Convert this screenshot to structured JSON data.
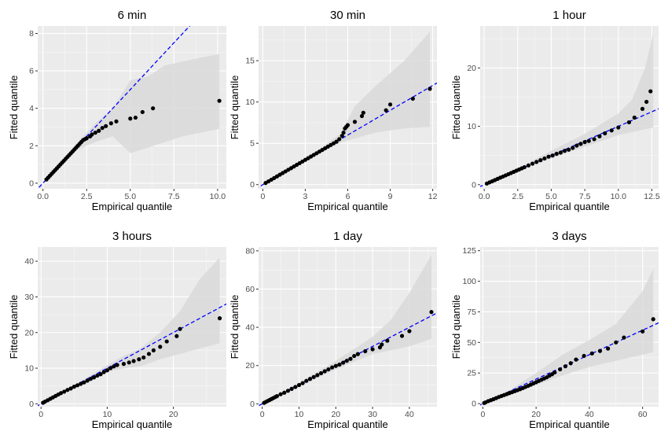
{
  "figure": {
    "panel_bg": "#ebebeb",
    "grid_major": "#ffffff",
    "band_fill": "#d9d9d9",
    "point_color": "#000000",
    "ref_line_color": "#0000ff"
  },
  "chart_data": [
    {
      "type": "scatter",
      "title": "6 min",
      "xlabel": "Empirical quantile",
      "ylabel": "Fitted quantile",
      "xlim": [
        -0.3,
        10.5
      ],
      "ylim": [
        -0.3,
        8.4
      ],
      "xticks": [
        0,
        2.5,
        5,
        7.5,
        10
      ],
      "xtick_labels": [
        "0.0",
        "2.5",
        "5.0",
        "7.5",
        "10.0"
      ],
      "yticks": [
        0,
        2,
        4,
        6,
        8
      ],
      "ytick_labels": [
        "0",
        "2",
        "4",
        "6",
        "8"
      ],
      "reference_line": "y = x",
      "points": {
        "x": [
          0.2,
          0.3,
          0.4,
          0.5,
          0.6,
          0.7,
          0.8,
          0.9,
          1.0,
          1.1,
          1.2,
          1.3,
          1.4,
          1.5,
          1.6,
          1.7,
          1.8,
          1.9,
          2.0,
          2.1,
          2.2,
          2.3,
          2.4,
          2.5,
          2.7,
          2.8,
          3.0,
          3.2,
          3.4,
          3.6,
          3.9,
          4.2,
          5.0,
          5.3,
          5.7,
          6.3,
          10.1
        ],
        "y": [
          0.2,
          0.3,
          0.4,
          0.5,
          0.6,
          0.7,
          0.8,
          0.9,
          1.0,
          1.1,
          1.2,
          1.3,
          1.4,
          1.5,
          1.6,
          1.7,
          1.8,
          1.9,
          2.0,
          2.1,
          2.2,
          2.3,
          2.35,
          2.4,
          2.5,
          2.6,
          2.7,
          2.8,
          2.95,
          3.05,
          3.2,
          3.3,
          3.45,
          3.5,
          3.8,
          4.0,
          4.4
        ]
      },
      "band": {
        "x": [
          0,
          1,
          2,
          3,
          4,
          5,
          6,
          7,
          8,
          9,
          10.1
        ],
        "lower": [
          0,
          0.9,
          1.8,
          2.2,
          2.5,
          1.6,
          1.9,
          2.2,
          2.5,
          2.7,
          2.9
        ],
        "upper": [
          0,
          1.1,
          2.2,
          3.2,
          4.0,
          5.5,
          5.7,
          6.3,
          6.5,
          6.7,
          6.9
        ]
      }
    },
    {
      "type": "scatter",
      "title": "30 min",
      "xlabel": "Empirical quantile",
      "ylabel": "Fitted quantile",
      "xlim": [
        -0.3,
        12.3
      ],
      "ylim": [
        -0.5,
        19.2
      ],
      "xticks": [
        0,
        3,
        6,
        9,
        12
      ],
      "xtick_labels": [
        "0",
        "3",
        "6",
        "9",
        "12"
      ],
      "yticks": [
        0,
        5,
        10,
        15
      ],
      "ytick_labels": [
        "0",
        "5",
        "10",
        "15"
      ],
      "reference_line": "y = x",
      "points": {
        "x": [
          0.2,
          0.4,
          0.6,
          0.8,
          1.0,
          1.2,
          1.4,
          1.6,
          1.8,
          2.0,
          2.2,
          2.4,
          2.6,
          2.8,
          3.0,
          3.2,
          3.4,
          3.6,
          3.8,
          4.0,
          4.2,
          4.4,
          4.6,
          4.8,
          5.0,
          5.2,
          5.4,
          5.6,
          5.7,
          5.8,
          5.9,
          6.0,
          6.5,
          7.0,
          7.1,
          8.7,
          9.0,
          10.6,
          11.8
        ],
        "y": [
          0.2,
          0.4,
          0.6,
          0.8,
          1.0,
          1.2,
          1.4,
          1.6,
          1.8,
          2.0,
          2.2,
          2.4,
          2.6,
          2.8,
          3.0,
          3.2,
          3.4,
          3.6,
          3.8,
          4.0,
          4.2,
          4.4,
          4.6,
          4.8,
          5.0,
          5.2,
          5.5,
          5.9,
          6.3,
          6.8,
          7.0,
          7.2,
          7.6,
          8.3,
          8.7,
          9.0,
          9.7,
          10.4,
          11.6
        ]
      },
      "band": {
        "x": [
          0,
          2,
          4,
          5.5,
          6.5,
          8,
          10,
          11.8
        ],
        "lower": [
          0,
          1.9,
          3.8,
          5.1,
          5.6,
          6.3,
          6.8,
          7.0
        ],
        "upper": [
          0,
          2.1,
          4.3,
          6.2,
          9.5,
          12.0,
          15.0,
          18.5
        ]
      }
    },
    {
      "type": "scatter",
      "title": "1 hour",
      "xlabel": "Empirical quantile",
      "ylabel": "Fitted quantile",
      "xlim": [
        -0.3,
        13.0
      ],
      "ylim": [
        -0.7,
        27.2
      ],
      "xticks": [
        0,
        2.5,
        5,
        7.5,
        10,
        12.5
      ],
      "xtick_labels": [
        "0.0",
        "2.5",
        "5.0",
        "7.5",
        "10.0",
        "12.5"
      ],
      "yticks": [
        0,
        10,
        20
      ],
      "ytick_labels": [
        "0",
        "10",
        "20"
      ],
      "reference_line": "y = x",
      "points": {
        "x": [
          0.2,
          0.4,
          0.6,
          0.8,
          1.0,
          1.2,
          1.4,
          1.6,
          1.8,
          2.0,
          2.2,
          2.4,
          2.6,
          2.8,
          3.0,
          3.3,
          3.6,
          3.9,
          4.2,
          4.5,
          4.8,
          5.1,
          5.4,
          5.7,
          6.0,
          6.3,
          6.6,
          6.9,
          7.2,
          7.5,
          7.8,
          8.2,
          8.6,
          9.0,
          9.5,
          10.0,
          10.8,
          11.2,
          11.8,
          12.1,
          12.4
        ],
        "y": [
          0.2,
          0.4,
          0.6,
          0.8,
          1.0,
          1.2,
          1.4,
          1.6,
          1.8,
          2.0,
          2.2,
          2.4,
          2.6,
          2.8,
          3.0,
          3.3,
          3.6,
          3.9,
          4.2,
          4.5,
          4.8,
          5.0,
          5.3,
          5.5,
          5.8,
          6.0,
          6.3,
          6.7,
          7.0,
          7.3,
          7.5,
          7.8,
          8.3,
          8.8,
          9.3,
          9.8,
          10.7,
          11.5,
          13.0,
          14.2,
          16.0
        ]
      },
      "band": {
        "x": [
          0,
          2.5,
          5,
          7.5,
          10,
          11,
          12,
          12.6
        ],
        "lower": [
          0,
          2.3,
          4.5,
          6.5,
          8.5,
          9.0,
          9.5,
          9.8
        ],
        "upper": [
          0,
          2.8,
          5.8,
          8.7,
          12.2,
          14.5,
          20.0,
          26.0
        ]
      }
    },
    {
      "type": "scatter",
      "title": "3 hours",
      "xlabel": "Empirical quantile",
      "ylabel": "Fitted quantile",
      "xlim": [
        -0.5,
        28.0
      ],
      "ylim": [
        -0.8,
        44.0
      ],
      "xticks": [
        0,
        10,
        20
      ],
      "xtick_labels": [
        "0",
        "10",
        "20"
      ],
      "yticks": [
        0,
        10,
        20,
        30,
        40
      ],
      "ytick_labels": [
        "0",
        "10",
        "20",
        "30",
        "40"
      ],
      "reference_line": "y = x",
      "points": {
        "x": [
          0.3,
          0.6,
          1.0,
          1.4,
          1.8,
          2.2,
          2.6,
          3.0,
          3.5,
          4.0,
          4.5,
          5.0,
          5.5,
          6.0,
          6.5,
          7.0,
          7.5,
          8.0,
          8.5,
          9.0,
          9.5,
          10.0,
          10.5,
          11.0,
          11.5,
          12.5,
          13.3,
          14.0,
          14.8,
          15.5,
          16.3,
          17.0,
          18.0,
          19.0,
          20.5,
          21.0,
          27.0
        ],
        "y": [
          0.3,
          0.6,
          1.0,
          1.4,
          1.8,
          2.2,
          2.6,
          3.0,
          3.4,
          3.9,
          4.3,
          4.8,
          5.2,
          5.6,
          6.0,
          6.5,
          7.0,
          7.4,
          7.9,
          8.3,
          8.9,
          9.4,
          10.0,
          10.5,
          10.9,
          11.2,
          11.6,
          12.0,
          12.5,
          13.0,
          14.0,
          15.0,
          16.0,
          17.5,
          19.0,
          21.0,
          24.0
        ]
      },
      "band": {
        "x": [
          0,
          5,
          10,
          12,
          15,
          18,
          21,
          24,
          27
        ],
        "lower": [
          0,
          4.6,
          9.0,
          9.8,
          10.5,
          12.5,
          14.0,
          15.5,
          17.0
        ],
        "upper": [
          0,
          5.3,
          10.8,
          13.0,
          15.5,
          20.0,
          26.0,
          35.0,
          41.0
        ]
      }
    },
    {
      "type": "scatter",
      "title": "1 day",
      "xlabel": "Empirical quantile",
      "ylabel": "Fitted quantile",
      "xlim": [
        -1.0,
        47.5
      ],
      "ylim": [
        -1.5,
        82.0
      ],
      "xticks": [
        0,
        10,
        20,
        30,
        40
      ],
      "xtick_labels": [
        "0",
        "10",
        "20",
        "30",
        "40"
      ],
      "yticks": [
        0,
        20,
        40,
        60,
        80
      ],
      "ytick_labels": [
        "0",
        "20",
        "40",
        "60",
        "80"
      ],
      "reference_line": "y = x",
      "points": {
        "x": [
          0.5,
          1.0,
          1.5,
          2.0,
          2.5,
          3.0,
          3.5,
          4.0,
          5.0,
          6.0,
          7.0,
          8.0,
          9.0,
          10.0,
          11.0,
          12.0,
          13.0,
          14.0,
          15.0,
          16.0,
          17.0,
          18.0,
          19.0,
          20.0,
          21.0,
          22.0,
          23.0,
          24.0,
          25.0,
          26.0,
          28.0,
          30.0,
          32.0,
          32.5,
          34.0,
          38.0,
          40.0,
          46.0
        ],
        "y": [
          0.5,
          1.0,
          1.5,
          2.0,
          2.5,
          3.0,
          3.5,
          4.0,
          5.0,
          5.8,
          6.8,
          7.8,
          8.8,
          9.8,
          10.8,
          12.0,
          13.0,
          14.0,
          15.0,
          16.0,
          17.0,
          18.0,
          19.0,
          19.8,
          20.5,
          21.5,
          22.5,
          23.5,
          25.0,
          26.0,
          27.5,
          28.5,
          29.5,
          31.0,
          33.0,
          35.5,
          38.0,
          48.0
        ]
      },
      "band": {
        "x": [
          0,
          10,
          20,
          30,
          35,
          40,
          46
        ],
        "lower": [
          0,
          9.0,
          18.0,
          26.0,
          28.0,
          30.0,
          34.0
        ],
        "upper": [
          0,
          11.0,
          22.5,
          35.0,
          44.0,
          58.0,
          78.0
        ]
      }
    },
    {
      "type": "scatter",
      "title": "3 days",
      "xlabel": "Empirical quantile",
      "ylabel": "Fitted quantile",
      "xlim": [
        -1.0,
        66.0
      ],
      "ylim": [
        -2.5,
        128.0
      ],
      "xticks": [
        0,
        20,
        40,
        60
      ],
      "xtick_labels": [
        "0",
        "20",
        "40",
        "60"
      ],
      "yticks": [
        0,
        25,
        50,
        75,
        100,
        125
      ],
      "ytick_labels": [
        "0",
        "25",
        "50",
        "75",
        "100",
        "125"
      ],
      "reference_line": "y = x",
      "points": {
        "x": [
          0.5,
          1.0,
          2.0,
          3.0,
          4.0,
          5.0,
          6.0,
          7.0,
          8.0,
          9.0,
          10.0,
          11.0,
          12.0,
          13.0,
          14.0,
          15.0,
          16.0,
          17.0,
          18.0,
          19.0,
          20.0,
          21.0,
          22.0,
          23.0,
          24.0,
          25.0,
          26.0,
          27.0,
          29.0,
          31.0,
          33.0,
          35.0,
          38.0,
          41.0,
          44.0,
          47.0,
          50.0,
          53.0,
          60.0,
          64.0
        ],
        "y": [
          0.5,
          1.0,
          2.0,
          2.8,
          3.6,
          4.5,
          5.4,
          6.2,
          7.0,
          7.8,
          8.6,
          9.4,
          10.2,
          11.0,
          11.8,
          12.7,
          13.6,
          14.5,
          15.5,
          16.5,
          17.5,
          18.5,
          19.5,
          20.5,
          21.5,
          22.8,
          24.0,
          25.5,
          28.0,
          30.5,
          33.0,
          36.0,
          39.0,
          41.0,
          43.0,
          45.0,
          50.0,
          54.0,
          59.0,
          69.0
        ]
      },
      "band": {
        "x": [
          0,
          10,
          20,
          30,
          40,
          50,
          60,
          64
        ],
        "lower": [
          0,
          7.5,
          15.0,
          23.0,
          30.0,
          35.0,
          40.0,
          42.0
        ],
        "upper": [
          0,
          11.0,
          25.0,
          40.0,
          52.0,
          65.0,
          92.0,
          110.0
        ]
      }
    }
  ]
}
